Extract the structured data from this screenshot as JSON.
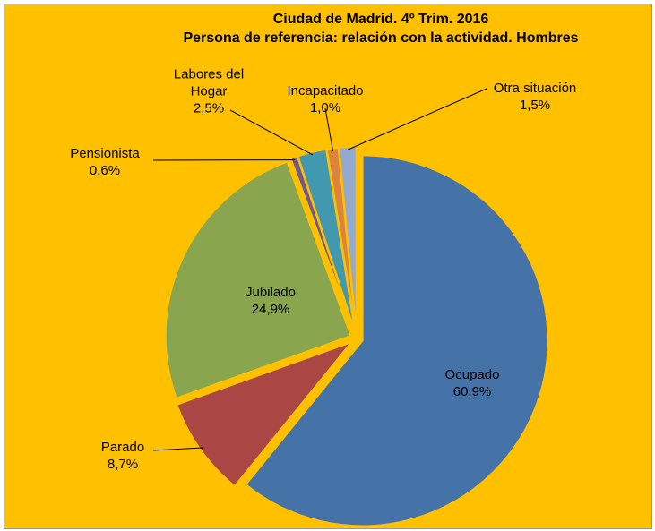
{
  "chart_data": {
    "type": "pie",
    "title": "Ciudad de Madrid. 4º Trim. 2016",
    "subtitle": "Persona de referencia: relación con la actividad. Hombres",
    "categories": [
      "Ocupado",
      "Parado",
      "Jubilado",
      "Pensionista",
      "Labores del Hogar",
      "Incapacitado",
      "Otra situación"
    ],
    "values": [
      60.9,
      8.7,
      24.9,
      0.6,
      2.5,
      1.0,
      1.5
    ],
    "value_labels": [
      "60,9%",
      "8,7%",
      "24,9%",
      "0,6%",
      "2,5%",
      "1,0%",
      "1,5%"
    ],
    "colors": [
      "#4572A7",
      "#AA4643",
      "#89A54E",
      "#71588F",
      "#4198AF",
      "#DB843D",
      "#93A9CF"
    ]
  }
}
